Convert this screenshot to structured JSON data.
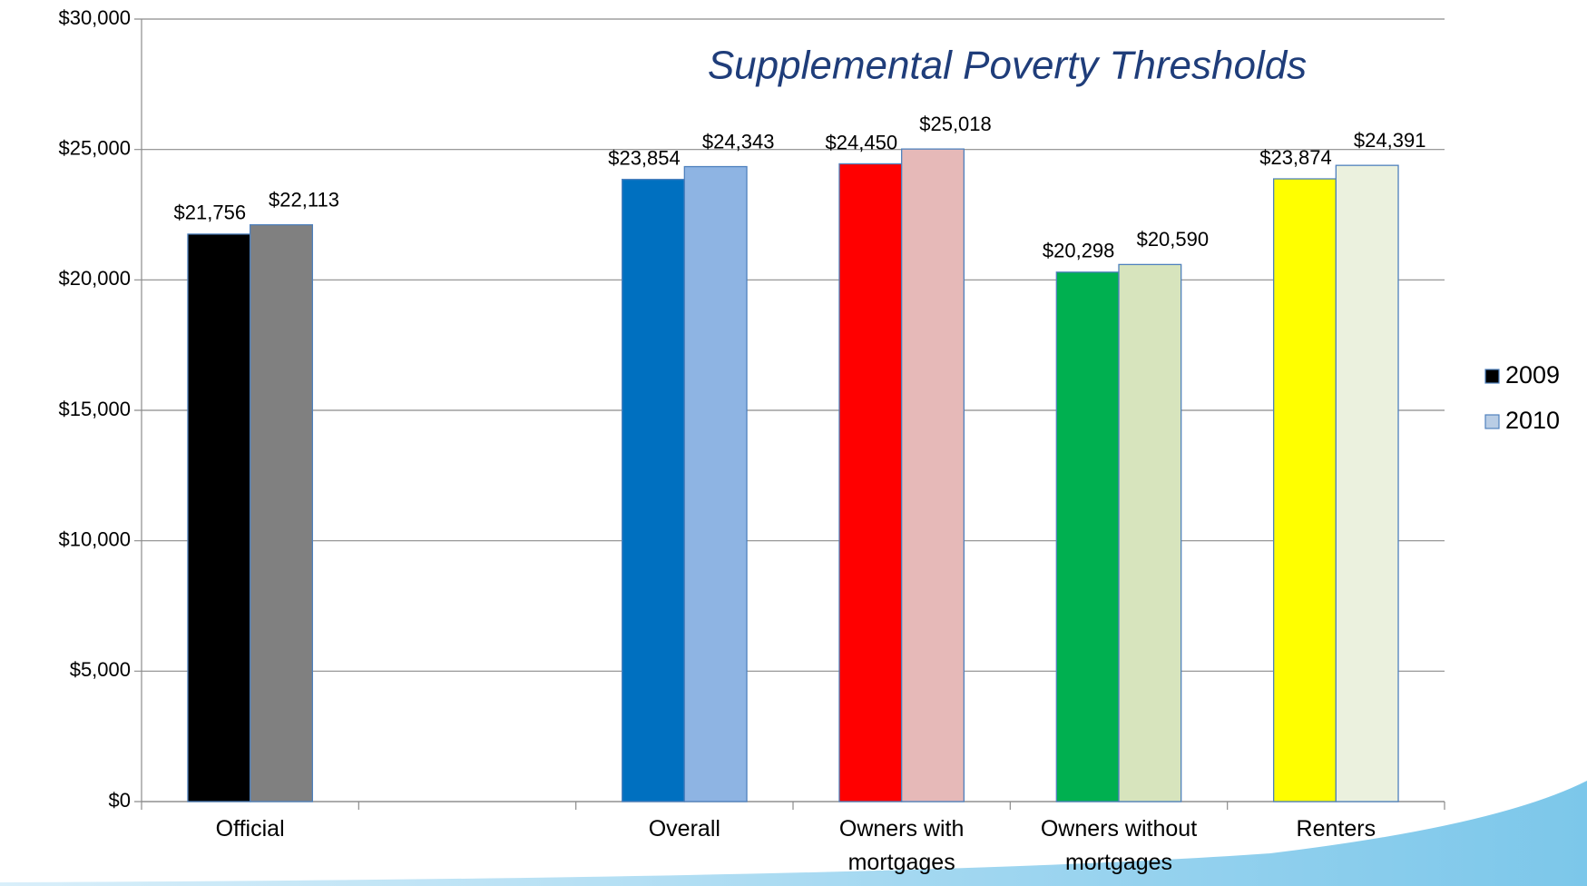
{
  "chart_data": {
    "type": "bar",
    "title": "Supplemental Poverty Thresholds",
    "categories": [
      "Official",
      null,
      "Overall",
      "Owners with mortgages",
      "Owners without mortgages",
      "Renters"
    ],
    "series": [
      {
        "name": "2009",
        "color": "#000000",
        "colors": [
          "#000000",
          null,
          "#0070c0",
          "#ff0000",
          "#00b050",
          "#ffff00"
        ],
        "values": [
          21756,
          null,
          23854,
          24450,
          20298,
          23874
        ],
        "value_labels": [
          "$21,756",
          null,
          "$23,854",
          "$24,450",
          "$20,298",
          "$23,874"
        ]
      },
      {
        "name": "2010",
        "color": "#b9cde5",
        "colors": [
          "#808080",
          null,
          "#8eb4e3",
          "#e6b9b8",
          "#d7e4bd",
          "#ebf1de"
        ],
        "values": [
          22113,
          null,
          24343,
          25018,
          20590,
          24391
        ],
        "value_labels": [
          "$22,113",
          null,
          "$24,343",
          "$25,018",
          "$20,590",
          "$24,391"
        ]
      }
    ],
    "ylim": [
      0,
      30000
    ],
    "yticks": [
      {
        "value": 0,
        "label": "$0"
      },
      {
        "value": 5000,
        "label": "$5,000"
      },
      {
        "value": 10000,
        "label": "$10,000"
      },
      {
        "value": 15000,
        "label": "$15,000"
      },
      {
        "value": 20000,
        "label": "$20,000"
      },
      {
        "value": 25000,
        "label": "$25,000"
      },
      {
        "value": 30000,
        "label": "$30,000"
      }
    ],
    "grid": true,
    "legend": "right"
  }
}
